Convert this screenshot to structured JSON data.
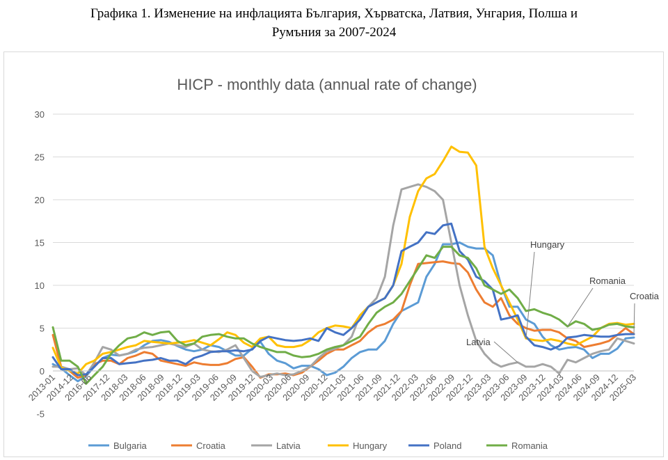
{
  "caption": {
    "line1": "Графика 1. Изменение на инфлацията България, Хърватска, Латвия, Унгария, Полша и",
    "line2": "Румъния за 2007-2024"
  },
  "chart_data": {
    "type": "line",
    "title": "HICP - monthly data (annual rate of change)",
    "xlabel": "",
    "ylabel": "",
    "ylim": [
      -5,
      30
    ],
    "yticks": [
      -5,
      0,
      5,
      10,
      15,
      20,
      25,
      30
    ],
    "grid": "horizontal",
    "legend_position": "bottom",
    "x_start": "2013-01",
    "x_end": "2025-04",
    "x_ticks": [
      "2013-01",
      "2014-12",
      "2016-06",
      "2017-12",
      "2018-03",
      "2018-06",
      "2018-09",
      "2018-12",
      "2019-03",
      "2019-06",
      "2019-09",
      "2019-12",
      "2020-03",
      "2020-06",
      "2020-09",
      "2020-12",
      "2021-03",
      "2021-06",
      "2021-09",
      "2021-12",
      "2022-03",
      "2022-06",
      "2022-09",
      "2022-12",
      "2023-03",
      "2023-06",
      "2023-09",
      "2023-12",
      "2024-03",
      "2024-06",
      "2024-09",
      "2024-12",
      "2025-03"
    ],
    "series": [
      {
        "name": "Bulgaria",
        "color": "#5b9bd5",
        "values": [
          0.8,
          0.3,
          -0.5,
          -1.2,
          -0.6,
          0.5,
          1.5,
          1.9,
          1.8,
          2.0,
          2.3,
          3.0,
          3.5,
          3.6,
          3.4,
          2.9,
          2.5,
          2.3,
          2.5,
          3.0,
          2.8,
          2.3,
          1.8,
          1.8,
          2.6,
          3.4,
          2.0,
          1.2,
          0.9,
          0.3,
          0.6,
          0.6,
          0.2,
          -0.5,
          -0.2,
          0.5,
          1.5,
          2.2,
          2.5,
          2.5,
          3.5,
          5.5,
          7.0,
          7.5,
          8.0,
          11.0,
          12.5,
          14.8,
          14.8,
          15.0,
          14.5,
          14.3,
          14.3,
          13.5,
          10.0,
          7.5,
          7.5,
          6.0,
          5.5,
          4.0,
          3.0,
          2.5,
          2.7,
          2.8,
          2.5,
          1.5,
          2.0,
          2.0,
          2.6,
          3.8,
          3.9
        ]
      },
      {
        "name": "Croatia",
        "color": "#ed7d31",
        "values": [
          4.2,
          0.5,
          0.0,
          -0.8,
          -0.5,
          0.8,
          1.2,
          1.2,
          0.8,
          1.5,
          1.8,
          2.2,
          2.0,
          1.2,
          1.0,
          0.8,
          0.6,
          1.0,
          0.8,
          0.7,
          0.7,
          0.9,
          1.4,
          1.6,
          0.5,
          -0.8,
          -0.4,
          -0.4,
          -0.3,
          -0.5,
          -0.2,
          0.5,
          1.2,
          2.0,
          2.5,
          2.5,
          3.0,
          3.5,
          4.5,
          5.2,
          5.5,
          6.0,
          7.0,
          10.0,
          12.5,
          12.6,
          12.7,
          12.8,
          12.6,
          12.5,
          11.5,
          9.5,
          8.0,
          7.5,
          8.5,
          6.5,
          5.5,
          5.0,
          4.7,
          4.8,
          4.8,
          4.5,
          3.8,
          3.5,
          2.8,
          3.0,
          3.2,
          3.5,
          4.2,
          5.0,
          4.3
        ]
      },
      {
        "name": "Latvia",
        "color": "#a5a5a5",
        "values": [
          0.5,
          0.5,
          0.2,
          0.3,
          -0.5,
          1.0,
          2.8,
          2.5,
          1.8,
          2.0,
          2.5,
          2.7,
          2.8,
          3.0,
          3.2,
          3.0,
          2.8,
          3.2,
          2.5,
          2.3,
          2.2,
          2.5,
          3.0,
          1.5,
          0.0,
          -0.7,
          -0.5,
          -0.3,
          -0.5,
          -0.4,
          0.0,
          0.5,
          1.5,
          2.3,
          2.6,
          3.0,
          4.0,
          6.5,
          7.5,
          8.5,
          11.0,
          17.0,
          21.2,
          21.5,
          21.8,
          21.5,
          21.0,
          20.0,
          15.0,
          10.0,
          6.5,
          3.5,
          2.0,
          1.0,
          0.5,
          0.8,
          1.0,
          0.5,
          0.5,
          0.8,
          0.5,
          -0.3,
          1.3,
          1.0,
          1.5,
          2.0,
          2.3,
          2.5,
          3.8,
          3.5,
          3.2
        ]
      },
      {
        "name": "Hungary",
        "color": "#ffc000",
        "values": [
          2.7,
          0.4,
          0.0,
          -0.3,
          0.8,
          1.2,
          2.0,
          2.2,
          2.5,
          2.8,
          3.0,
          3.5,
          3.4,
          3.3,
          3.2,
          3.3,
          3.4,
          3.6,
          3.3,
          3.0,
          3.7,
          4.5,
          4.2,
          3.3,
          2.8,
          3.8,
          4.0,
          3.0,
          2.8,
          2.8,
          3.0,
          3.6,
          4.5,
          5.0,
          5.3,
          5.2,
          5.0,
          6.5,
          7.5,
          8.0,
          8.5,
          10.0,
          12.5,
          18.0,
          21.0,
          22.5,
          23.0,
          24.5,
          26.2,
          25.6,
          25.5,
          24.0,
          14.5,
          12.0,
          10.0,
          8.0,
          6.0,
          3.8,
          3.6,
          3.5,
          3.7,
          3.5,
          3.2,
          3.0,
          3.5,
          4.0,
          5.0,
          5.5,
          5.6,
          5.4,
          5.5
        ]
      },
      {
        "name": "Poland",
        "color": "#4472c4",
        "values": [
          1.6,
          0.2,
          0.2,
          -0.5,
          -0.4,
          0.5,
          1.5,
          1.5,
          0.8,
          0.9,
          1.0,
          1.2,
          1.3,
          1.5,
          1.2,
          1.2,
          0.8,
          1.5,
          1.8,
          2.2,
          2.3,
          2.3,
          2.4,
          2.3,
          2.5,
          3.5,
          4.0,
          3.8,
          3.6,
          3.5,
          3.6,
          3.8,
          3.5,
          5.0,
          4.5,
          4.2,
          5.0,
          6.0,
          7.5,
          8.0,
          8.5,
          10.0,
          14.0,
          14.5,
          15.0,
          16.2,
          16.0,
          17.0,
          17.2,
          14.0,
          13.0,
          11.0,
          10.5,
          9.5,
          6.0,
          6.2,
          6.5,
          4.0,
          3.0,
          2.8,
          2.5,
          2.9,
          3.9,
          4.0,
          4.2,
          4.1,
          4.0,
          4.0,
          4.2,
          4.3,
          4.3
        ]
      },
      {
        "name": "Romania",
        "color": "#70ad47",
        "values": [
          5.1,
          1.2,
          1.2,
          0.5,
          -1.5,
          -0.5,
          0.5,
          2.0,
          3.0,
          3.8,
          4.0,
          4.5,
          4.2,
          4.5,
          4.6,
          3.5,
          3.0,
          3.2,
          4.0,
          4.2,
          4.3,
          4.0,
          3.8,
          3.8,
          3.2,
          2.8,
          2.5,
          2.2,
          2.2,
          1.8,
          1.6,
          1.7,
          2.0,
          2.5,
          2.8,
          3.0,
          3.5,
          4.0,
          5.5,
          6.8,
          7.5,
          8.0,
          9.0,
          10.5,
          12.0,
          13.5,
          13.2,
          14.5,
          14.5,
          13.5,
          13.2,
          12.0,
          10.0,
          9.5,
          9.0,
          9.5,
          8.5,
          7.0,
          7.2,
          6.8,
          6.5,
          6.0,
          5.2,
          5.8,
          5.5,
          4.8,
          5.0,
          5.4,
          5.5,
          5.2,
          5.1
        ]
      }
    ],
    "annotations": [
      {
        "text": "Hungary",
        "series": "Hungary"
      },
      {
        "text": "Romania",
        "series": "Romania"
      },
      {
        "text": "Croatia",
        "series": "Croatia"
      },
      {
        "text": "Latvia",
        "series": "Latvia"
      }
    ]
  }
}
